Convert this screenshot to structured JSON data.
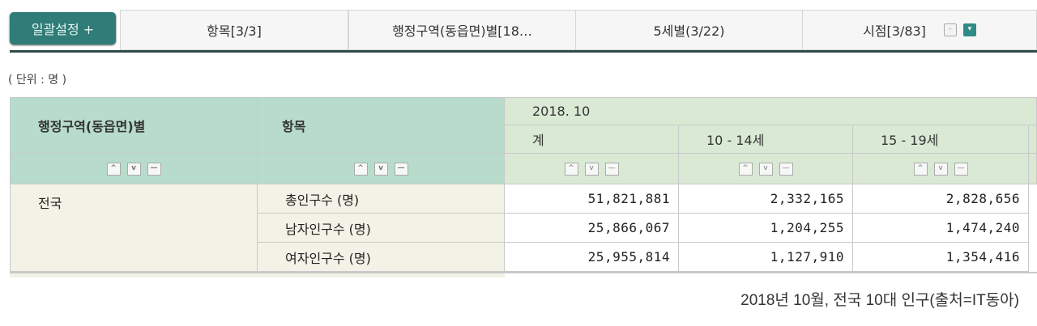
{
  "toolbar": {
    "bulk_button": "일괄설정 +",
    "tabs": [
      {
        "label": "항목[3/3]"
      },
      {
        "label": "행정구역(동읍면)별[18…"
      },
      {
        "label": "5세별(3/22)"
      },
      {
        "label": "시점[3/83]"
      }
    ],
    "collapse_icon": "minus-icon",
    "expand_icon": "arrow-down-icon",
    "accent_color": "#2f7c78"
  },
  "unit_label": "( 단위 : 명 )",
  "table": {
    "header_region": "행정구역(동읍면)별",
    "header_item": "항목",
    "period": "2018. 10",
    "age_columns": [
      "계",
      "10 - 14세",
      "15 - 19세"
    ],
    "sort_buttons": {
      "asc": "^",
      "desc": "v",
      "remove": "—"
    },
    "region": "전국",
    "rows": [
      {
        "item": "총인구수 (명)",
        "values": [
          "51,821,881",
          "2,332,165",
          "2,828,656"
        ]
      },
      {
        "item": "남자인구수 (명)",
        "values": [
          "25,866,067",
          "1,204,255",
          "1,474,240"
        ]
      },
      {
        "item": "여자인구수 (명)",
        "values": [
          "25,955,814",
          "1,127,910",
          "1,354,416"
        ]
      }
    ]
  },
  "caption": "2018년 10월, 전국 10대 인구(출처=IT동아)"
}
